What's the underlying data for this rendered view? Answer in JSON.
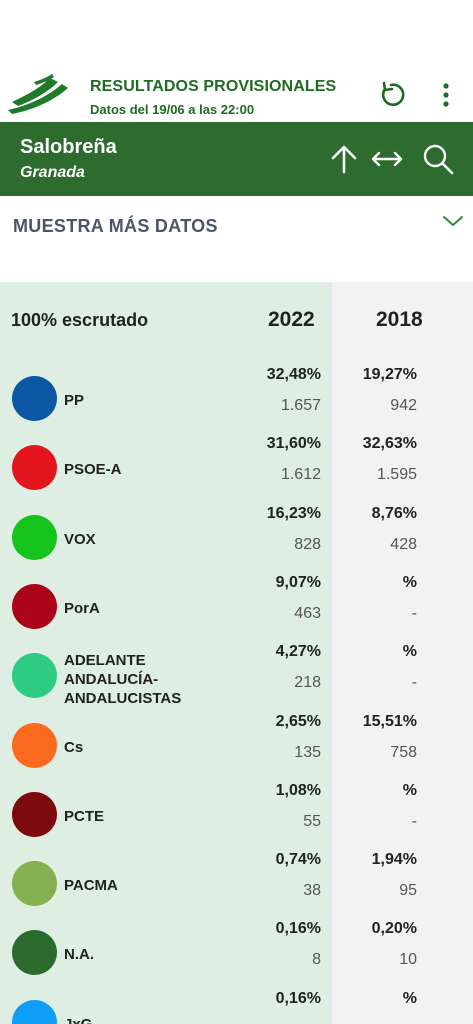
{
  "header": {
    "title": "RESULTADOS PROVISIONALES",
    "subtitle": "Datos del 19/06 a las 22:00",
    "logo_icon": "junta-andalucia-logo",
    "refresh_icon": "refresh-icon",
    "menu_icon": "more-vertical-icon"
  },
  "location": {
    "municipality": "Salobreña",
    "province": "Granada",
    "icons": [
      "arrow-up-icon",
      "arrows-horizontal-icon",
      "search-icon"
    ]
  },
  "more_data": {
    "label": "MUESTRA MÁS DATOS",
    "icon": "chevron-down-icon"
  },
  "results": {
    "scrutiny": "100% escrutado",
    "year_current": "2022",
    "year_previous": "2018",
    "parties": [
      {
        "name": "PP",
        "color": "#0b57a4",
        "pct_2022": "32,48%",
        "votes_2022": "1.657",
        "pct_2018": "19,27%",
        "votes_2018": "942"
      },
      {
        "name": "PSOE-A",
        "color": "#e3161f",
        "pct_2022": "31,60%",
        "votes_2022": "1.612",
        "pct_2018": "32,63%",
        "votes_2018": "1.595"
      },
      {
        "name": "VOX",
        "color": "#14c41c",
        "pct_2022": "16,23%",
        "votes_2022": "828",
        "pct_2018": "8,76%",
        "votes_2018": "428"
      },
      {
        "name": "PorA",
        "color": "#ab0418",
        "pct_2022": "9,07%",
        "votes_2022": "463",
        "pct_2018": "%",
        "votes_2018": "-"
      },
      {
        "name": "ADELANTE ANDALUCÍA-ANDALUCISTAS",
        "color": "#2ecb83",
        "pct_2022": "4,27%",
        "votes_2022": "218",
        "pct_2018": "%",
        "votes_2018": "-"
      },
      {
        "name": "Cs",
        "color": "#fb6a1f",
        "pct_2022": "2,65%",
        "votes_2022": "135",
        "pct_2018": "15,51%",
        "votes_2018": "758"
      },
      {
        "name": "PCTE",
        "color": "#7d0a0d",
        "pct_2022": "1,08%",
        "votes_2022": "55",
        "pct_2018": "%",
        "votes_2018": "-"
      },
      {
        "name": "PACMA",
        "color": "#84b04f",
        "pct_2022": "0,74%",
        "votes_2022": "38",
        "pct_2018": "1,94%",
        "votes_2018": "95"
      },
      {
        "name": "N.A.",
        "color": "#2b6c2e",
        "pct_2022": "0,16%",
        "votes_2022": "8",
        "pct_2018": "0,20%",
        "votes_2018": "10"
      },
      {
        "name": "JxG",
        "color": "#0f9ef6",
        "pct_2022": "0,16%",
        "votes_2022": "",
        "pct_2018": "%",
        "votes_2018": ""
      }
    ]
  }
}
